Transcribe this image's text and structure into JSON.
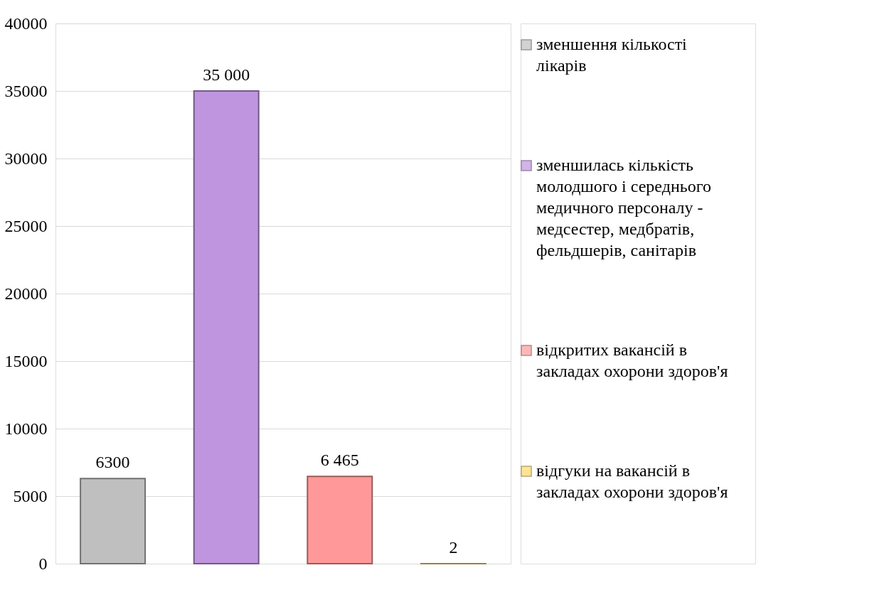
{
  "chart_data": {
    "type": "bar",
    "categories": [
      null,
      null,
      null,
      null
    ],
    "series": [
      {
        "name": "зменшення кількості лікарів",
        "color": "#bfbfbf",
        "values": [
          6300,
          null,
          null,
          null
        ],
        "value_labels": [
          "6300",
          null,
          null,
          null
        ]
      },
      {
        "name": "зменшилась кількість молодшого і середнього медичного персоналу - медсестер, медбратів, фельдшерів, санітарів",
        "color": "#bf95df",
        "values": [
          null,
          35000,
          null,
          null
        ],
        "value_labels": [
          null,
          "35 000",
          null,
          null
        ]
      },
      {
        "name": "відкритих вакансій в закладах охорони здоров'я",
        "color": "#ff9999",
        "values": [
          null,
          null,
          6465,
          null
        ],
        "value_labels": [
          null,
          null,
          "6 465",
          null
        ]
      },
      {
        "name": "відгуки на вакансій в закладах охорони здоров'я",
        "color": "#ffd966",
        "values": [
          null,
          null,
          null,
          2
        ],
        "value_labels": [
          null,
          null,
          null,
          "2"
        ]
      }
    ],
    "ylim": [
      0,
      40000
    ],
    "yticks": [
      0,
      5000,
      10000,
      15000,
      20000,
      25000,
      30000,
      35000,
      40000
    ],
    "grid": "y",
    "legend": "right",
    "tick_labels": "y"
  }
}
